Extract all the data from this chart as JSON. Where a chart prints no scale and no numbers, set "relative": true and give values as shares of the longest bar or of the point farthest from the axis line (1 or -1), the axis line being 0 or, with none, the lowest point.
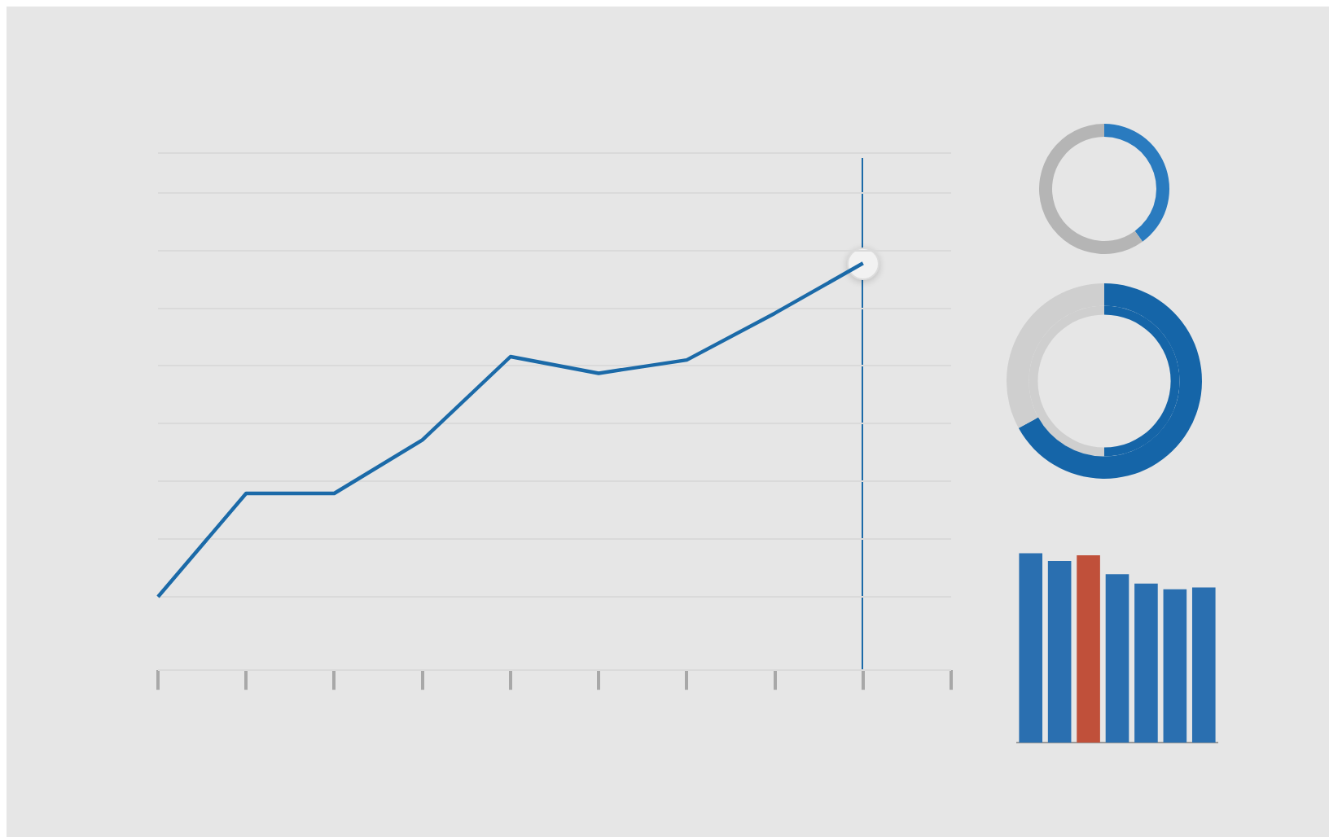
{
  "chart_data": [
    {
      "type": "line",
      "relative": true,
      "categories": [
        null,
        null,
        null,
        null,
        null,
        null,
        null,
        null,
        null,
        null
      ],
      "series": [
        {
          "color": "#1b6aa8",
          "values": [
            0,
            0.31,
            0.31,
            0.47,
            0.72,
            0.67,
            0.71,
            0.85,
            1,
            null
          ]
        }
      ],
      "grid": "y",
      "legend": false
    },
    {
      "type": "donut",
      "categories": [
        null,
        null
      ],
      "values": [
        40,
        60
      ],
      "colors": [
        "#2a7bbf",
        "#b5b5b5"
      ],
      "legend": false
    },
    {
      "type": "donut",
      "categories": [
        null,
        null
      ],
      "series": [
        {
          "values": [
            67,
            33
          ],
          "colors": [
            "#1565a8",
            "#cfcfcf"
          ]
        },
        {
          "values": [
            50,
            50
          ],
          "colors": [
            "#1565a8",
            "#cfcfcf"
          ]
        }
      ],
      "legend": false
    },
    {
      "type": "bar",
      "relative": true,
      "categories": [
        null,
        null,
        null,
        null,
        null,
        null,
        null
      ],
      "values": [
        1,
        0.96,
        0.99,
        0.89,
        0.84,
        0.81,
        0.82
      ],
      "colors": [
        "#2a6fb0",
        "#2a6fb0",
        "#c0503a",
        "#2a6fb0",
        "#2a6fb0",
        "#2a6fb0",
        "#2a6fb0"
      ],
      "legend": false
    }
  ]
}
